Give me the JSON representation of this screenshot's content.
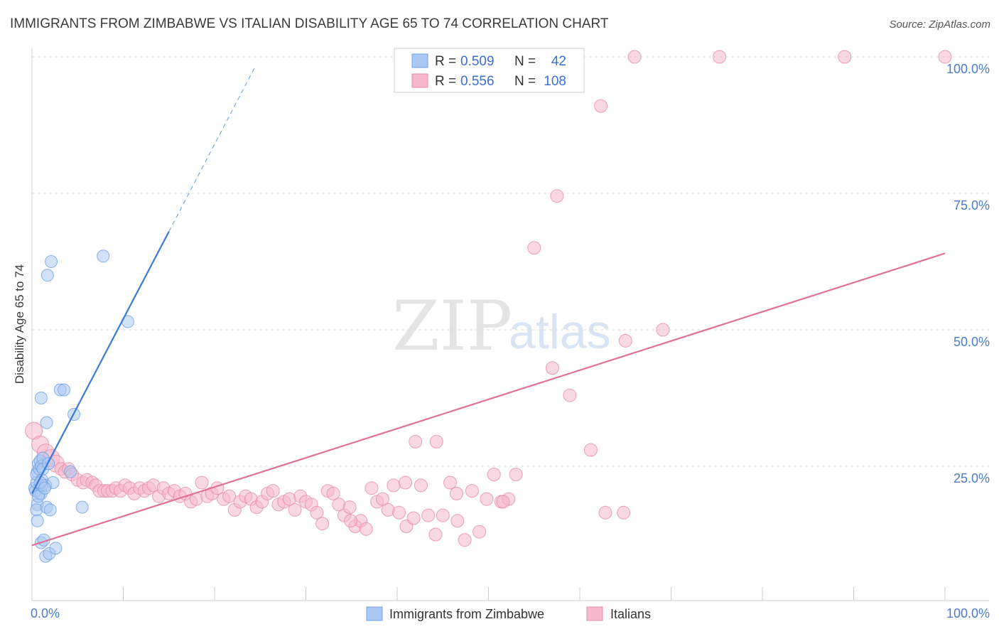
{
  "title": "IMMIGRANTS FROM ZIMBABWE VS ITALIAN DISABILITY AGE 65 TO 74 CORRELATION CHART",
  "source": "Source: ZipAtlas.com",
  "watermark": {
    "zip": "ZIP",
    "atlas": "atlas"
  },
  "legend_box": {
    "rows": [
      {
        "r_label": "R =",
        "r_value": "0.509",
        "n_label": "N =",
        "n_value": "42"
      },
      {
        "r_label": "R =",
        "r_value": "0.556",
        "n_label": "N =",
        "n_value": "108"
      }
    ]
  },
  "bottom_legend": [
    "Immigrants from Zimbabwe",
    "Italians"
  ],
  "colors": {
    "blue": "#3a7bd5",
    "blue_fill": "#a9c9f3",
    "pink": "#e0709a",
    "pink_fill": "#f6b8cc",
    "grid": "#dcdcdc",
    "tick_text": "#4a7cc9"
  },
  "chart_data": {
    "type": "scatter",
    "title": "IMMIGRANTS FROM ZIMBABWE VS ITALIAN DISABILITY AGE 65 TO 74 CORRELATION CHART",
    "xlabel": "",
    "ylabel": "Disability Age 65 to 74",
    "xlim": [
      0,
      100
    ],
    "ylim": [
      0,
      100
    ],
    "x_tick_labels": [
      "0.0%",
      "100.0%"
    ],
    "y_ticks": [
      25,
      50,
      75,
      100
    ],
    "y_tick_labels": [
      "25.0%",
      "50.0%",
      "75.0%",
      "100.0%"
    ],
    "series": [
      {
        "name": "Immigrants from Zimbabwe",
        "color": "#3a7bd5",
        "trend": {
          "x0": 0,
          "y0": 20.0,
          "x1": 15,
          "y1": 68.0,
          "dash_to_x": 24.5
        },
        "points": [
          [
            0.3,
            21.0
          ],
          [
            0.4,
            20.5
          ],
          [
            0.5,
            22.0
          ],
          [
            0.6,
            24.0
          ],
          [
            0.7,
            25.5
          ],
          [
            0.5,
            23.5
          ],
          [
            0.8,
            24.5
          ],
          [
            0.9,
            26.0
          ],
          [
            1.0,
            25.0
          ],
          [
            1.1,
            22.5
          ],
          [
            1.2,
            26.5
          ],
          [
            0.6,
            18.0
          ],
          [
            0.5,
            17.0
          ],
          [
            0.6,
            15.0
          ],
          [
            0.8,
            20.0
          ],
          [
            1.0,
            20.0
          ],
          [
            1.1,
            21.5
          ],
          [
            1.5,
            21.5
          ],
          [
            1.6,
            17.5
          ],
          [
            2.0,
            17.0
          ],
          [
            2.3,
            22.0
          ],
          [
            1.0,
            37.5
          ],
          [
            1.6,
            33.0
          ],
          [
            1.7,
            60.0
          ],
          [
            2.1,
            62.5
          ],
          [
            3.1,
            39.0
          ],
          [
            3.5,
            39.0
          ],
          [
            4.6,
            34.5
          ],
          [
            5.5,
            17.5
          ],
          [
            7.8,
            63.5
          ],
          [
            10.5,
            51.5
          ],
          [
            1.0,
            11.0
          ],
          [
            1.3,
            11.5
          ],
          [
            1.5,
            8.5
          ],
          [
            1.9,
            9.0
          ],
          [
            2.6,
            10.0
          ],
          [
            0.9,
            22.0
          ],
          [
            1.2,
            24.5
          ],
          [
            1.8,
            25.5
          ],
          [
            4.2,
            24.0
          ],
          [
            0.7,
            19.5
          ],
          [
            1.4,
            21.0
          ]
        ]
      },
      {
        "name": "Italians",
        "color": "#e0709a",
        "trend": {
          "x0": 0,
          "y0": 10.5,
          "x1": 100,
          "y1": 64.0
        },
        "points": [
          [
            0.2,
            31.5
          ],
          [
            0.9,
            29.0
          ],
          [
            1.5,
            27.5
          ],
          [
            2.1,
            26.5
          ],
          [
            2.6,
            25.5
          ],
          [
            3.2,
            24.5
          ],
          [
            3.6,
            24.0
          ],
          [
            4.0,
            24.5
          ],
          [
            4.4,
            23.5
          ],
          [
            5.0,
            22.5
          ],
          [
            5.6,
            22.0
          ],
          [
            6.0,
            22.5
          ],
          [
            6.6,
            22.0
          ],
          [
            7.0,
            21.5
          ],
          [
            7.4,
            20.5
          ],
          [
            7.9,
            20.5
          ],
          [
            8.3,
            20.5
          ],
          [
            8.8,
            20.5
          ],
          [
            9.2,
            21.0
          ],
          [
            9.7,
            20.5
          ],
          [
            10.2,
            21.5
          ],
          [
            10.7,
            21.0
          ],
          [
            11.2,
            20.0
          ],
          [
            11.8,
            21.0
          ],
          [
            12.3,
            20.5
          ],
          [
            12.8,
            21.0
          ],
          [
            13.3,
            21.5
          ],
          [
            13.9,
            19.5
          ],
          [
            14.4,
            21.0
          ],
          [
            15.0,
            20.0
          ],
          [
            15.6,
            20.5
          ],
          [
            16.2,
            19.5
          ],
          [
            16.8,
            20.0
          ],
          [
            17.4,
            18.5
          ],
          [
            18.0,
            19.0
          ],
          [
            18.6,
            22.0
          ],
          [
            19.2,
            19.5
          ],
          [
            19.7,
            20.0
          ],
          [
            20.3,
            21.0
          ],
          [
            21.0,
            19.0
          ],
          [
            21.6,
            19.5
          ],
          [
            22.2,
            17.0
          ],
          [
            22.8,
            18.5
          ],
          [
            23.4,
            19.5
          ],
          [
            24.0,
            19.0
          ],
          [
            24.6,
            17.5
          ],
          [
            25.2,
            18.5
          ],
          [
            25.8,
            20.0
          ],
          [
            26.4,
            20.5
          ],
          [
            27.0,
            18.0
          ],
          [
            27.6,
            18.5
          ],
          [
            28.2,
            19.0
          ],
          [
            28.8,
            17.0
          ],
          [
            29.4,
            19.5
          ],
          [
            30.0,
            18.5
          ],
          [
            30.6,
            18.0
          ],
          [
            31.2,
            16.5
          ],
          [
            31.8,
            14.5
          ],
          [
            32.4,
            20.5
          ],
          [
            33.0,
            20.0
          ],
          [
            33.6,
            18.0
          ],
          [
            34.2,
            16.0
          ],
          [
            34.8,
            17.5
          ],
          [
            35.4,
            14.0
          ],
          [
            36.0,
            15.0
          ],
          [
            36.6,
            13.5
          ],
          [
            37.2,
            21.0
          ],
          [
            37.8,
            18.5
          ],
          [
            38.4,
            19.0
          ],
          [
            39.0,
            17.0
          ],
          [
            39.6,
            21.5
          ],
          [
            40.2,
            16.5
          ],
          [
            41.0,
            14.0
          ],
          [
            41.8,
            15.5
          ],
          [
            42.6,
            21.5
          ],
          [
            43.4,
            16.0
          ],
          [
            44.2,
            12.5
          ],
          [
            45.0,
            16.0
          ],
          [
            45.8,
            22.0
          ],
          [
            46.6,
            15.0
          ],
          [
            47.4,
            11.5
          ],
          [
            48.2,
            20.5
          ],
          [
            49.0,
            13.0
          ],
          [
            49.8,
            19.0
          ],
          [
            50.6,
            23.5
          ],
          [
            51.4,
            18.5
          ],
          [
            52.2,
            19.0
          ],
          [
            53.0,
            23.5
          ],
          [
            42.0,
            29.5
          ],
          [
            44.3,
            29.5
          ],
          [
            57.0,
            43.0
          ],
          [
            58.9,
            38.0
          ],
          [
            62.8,
            16.5
          ],
          [
            64.8,
            16.5
          ],
          [
            61.2,
            28.0
          ],
          [
            65.0,
            48.0
          ],
          [
            69.1,
            50.0
          ],
          [
            55.0,
            65.0
          ],
          [
            57.5,
            74.5
          ],
          [
            62.3,
            91.0
          ],
          [
            66.0,
            100.0
          ],
          [
            75.3,
            100.0
          ],
          [
            89.0,
            100.0
          ],
          [
            100.0,
            100.0
          ],
          [
            40.9,
            22.0
          ],
          [
            51.6,
            18.5
          ],
          [
            46.5,
            20.0
          ],
          [
            34.9,
            15.0
          ]
        ]
      }
    ]
  }
}
